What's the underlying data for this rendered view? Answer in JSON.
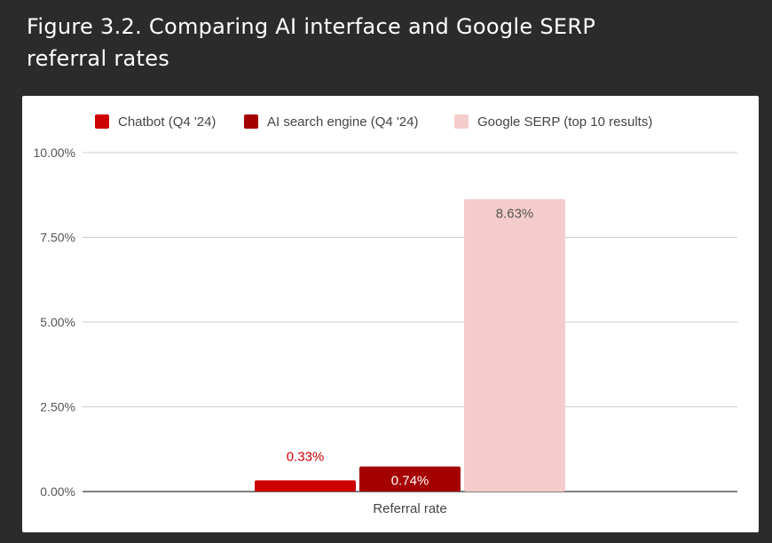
{
  "figure": {
    "title": "Figure 3.2. Comparing AI interface and Google SERP referral rates"
  },
  "chart_data": {
    "type": "bar",
    "categories": [
      "Referral rate"
    ],
    "series": [
      {
        "name": "Chatbot (Q4 '24)",
        "values": [
          0.33
        ],
        "label": "0.33%",
        "color": "#cc0000",
        "label_color": "#cc0000",
        "label_position": "above"
      },
      {
        "name": "AI search engine (Q4 '24)",
        "values": [
          0.74
        ],
        "label": "0.74%",
        "color": "#a50000",
        "label_color": "#ffffff",
        "label_position": "inside"
      },
      {
        "name": "Google SERP (top 10 results)",
        "values": [
          8.63
        ],
        "label": "8.63%",
        "color": "#f4cccc",
        "label_color": "#555555",
        "label_position": "inside"
      }
    ],
    "ylim": [
      0,
      10
    ],
    "yticks": [
      {
        "value": 10,
        "label": "10.00%"
      },
      {
        "value": 7.5,
        "label": "7.50%"
      },
      {
        "value": 5,
        "label": "5.00%"
      },
      {
        "value": 2.5,
        "label": "2.50%"
      },
      {
        "value": 0,
        "label": "0.00%"
      }
    ],
    "grid": true,
    "legend_position": "top",
    "xlabel": "",
    "ylabel": ""
  }
}
